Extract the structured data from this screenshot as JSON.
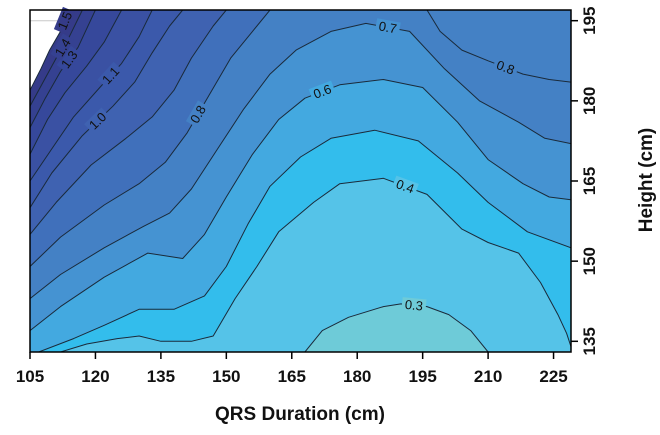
{
  "chart_data": {
    "type": "contour",
    "xlabel": "QRS Duration (cm)",
    "ylabel": "Height (cm)",
    "xlim": [
      105,
      229
    ],
    "ylim": [
      133,
      197
    ],
    "x_ticks": [
      105,
      120,
      135,
      150,
      165,
      180,
      195,
      210,
      225
    ],
    "y_ticks": [
      135,
      150,
      165,
      180,
      195
    ],
    "grid": true,
    "y_axis_side": "right",
    "levels": [
      0.3,
      0.4,
      0.5,
      0.6,
      0.7,
      0.8,
      0.9,
      1.0,
      1.1,
      1.2,
      1.3,
      1.4,
      1.5
    ],
    "level_colors": [
      "#6ecbd8",
      "#55c3e8",
      "#33bdec",
      "#43a9e0",
      "#4593d2",
      "#4481c5",
      "#4070bb",
      "#3f62b1",
      "#3b59ab",
      "#3a51a3",
      "#36489b",
      "#354191",
      "#353b89"
    ],
    "contours": [
      {
        "level": 0.3,
        "label": "0.3",
        "points": [
          [
            168,
            133
          ],
          [
            172,
            137
          ],
          [
            178,
            139.5
          ],
          [
            186,
            141.5
          ],
          [
            190,
            142
          ],
          [
            196,
            141.5
          ],
          [
            201,
            140
          ],
          [
            206,
            137
          ],
          [
            210,
            133
          ]
        ]
      },
      {
        "level": 0.4,
        "label": "0.4",
        "points": [
          [
            112,
            133
          ],
          [
            118,
            134.5
          ],
          [
            125,
            135.5
          ],
          [
            130,
            136
          ],
          [
            135,
            135
          ],
          [
            142,
            135
          ],
          [
            147,
            136
          ],
          [
            152,
            143
          ],
          [
            157,
            149
          ],
          [
            162,
            155.5
          ],
          [
            170,
            161
          ],
          [
            176,
            164.5
          ],
          [
            186,
            165.5
          ],
          [
            196,
            162.5
          ],
          [
            204,
            156
          ],
          [
            210,
            153.5
          ],
          [
            217,
            151.5
          ],
          [
            222,
            146
          ],
          [
            226,
            140
          ],
          [
            228,
            136.5
          ],
          [
            229,
            134
          ]
        ]
      },
      {
        "level": 0.5,
        "label": "",
        "points": [
          [
            107,
            133
          ],
          [
            115,
            135.5
          ],
          [
            122,
            138
          ],
          [
            130,
            141
          ],
          [
            138,
            141
          ],
          [
            145,
            143.5
          ],
          [
            150,
            149
          ],
          [
            155,
            157
          ],
          [
            160,
            164
          ],
          [
            167,
            169.5
          ],
          [
            174,
            173
          ],
          [
            184,
            174.5
          ],
          [
            194,
            172.5
          ],
          [
            203,
            166.5
          ],
          [
            210,
            161
          ],
          [
            219,
            155.5
          ],
          [
            229,
            152.5
          ]
        ]
      },
      {
        "level": 0.6,
        "label": "0.6",
        "points": [
          [
            105,
            137
          ],
          [
            112,
            141.5
          ],
          [
            122,
            147
          ],
          [
            132,
            151.5
          ],
          [
            140,
            150.5
          ],
          [
            145,
            155
          ],
          [
            150,
            162
          ],
          [
            156,
            170
          ],
          [
            162,
            176.5
          ],
          [
            168,
            180.5
          ],
          [
            176,
            183
          ],
          [
            186,
            184
          ],
          [
            195,
            182.5
          ],
          [
            203,
            176
          ],
          [
            210,
            169
          ],
          [
            218,
            164.5
          ],
          [
            224,
            162
          ],
          [
            229,
            161.5
          ]
        ]
      },
      {
        "level": 0.7,
        "label": "0.7",
        "points": [
          [
            105,
            143
          ],
          [
            112,
            147.5
          ],
          [
            122,
            152.5
          ],
          [
            131,
            156.5
          ],
          [
            137,
            159
          ],
          [
            142,
            163.5
          ],
          [
            148,
            171
          ],
          [
            154,
            178.5
          ],
          [
            160,
            185
          ],
          [
            166,
            189.5
          ],
          [
            174,
            193
          ],
          [
            182,
            194.5
          ],
          [
            192,
            193
          ],
          [
            200,
            186
          ],
          [
            208,
            180
          ],
          [
            217,
            176
          ],
          [
            223,
            173
          ],
          [
            229,
            172
          ]
        ]
      },
      {
        "level": 0.8,
        "label": "0.8",
        "points": [
          [
            105,
            149
          ],
          [
            112,
            154.5
          ],
          [
            122,
            160.5
          ],
          [
            130,
            164.5
          ],
          [
            136,
            168.5
          ],
          [
            141,
            174
          ],
          [
            146,
            181
          ],
          [
            151,
            188
          ],
          [
            156,
            193
          ],
          [
            160,
            197
          ]
        ]
      },
      {
        "level": 0.8,
        "label": "0.8",
        "points": [
          [
            196,
            197
          ],
          [
            199,
            193
          ],
          [
            204,
            189.5
          ],
          [
            210,
            187.5
          ],
          [
            218,
            185
          ],
          [
            224,
            184
          ],
          [
            229,
            183.5
          ]
        ]
      },
      {
        "level": 0.9,
        "label": "",
        "points": [
          [
            105,
            155
          ],
          [
            111,
            161
          ],
          [
            119,
            168
          ],
          [
            127,
            173
          ],
          [
            133,
            177
          ],
          [
            138,
            182
          ],
          [
            142,
            188
          ],
          [
            147,
            194
          ],
          [
            150,
            197
          ]
        ]
      },
      {
        "level": 1.0,
        "label": "1.0",
        "points": [
          [
            105,
            160
          ],
          [
            110,
            166.5
          ],
          [
            117,
            173.5
          ],
          [
            124,
            179
          ],
          [
            129,
            183.5
          ],
          [
            133,
            189
          ],
          [
            137,
            194
          ],
          [
            140,
            197
          ]
        ]
      },
      {
        "level": 1.1,
        "label": "1.1",
        "points": [
          [
            105,
            165
          ],
          [
            110,
            171
          ],
          [
            115,
            177
          ],
          [
            121,
            182.5
          ],
          [
            126,
            187
          ],
          [
            130,
            192
          ],
          [
            133,
            197
          ]
        ]
      },
      {
        "level": 1.2,
        "label": "",
        "points": [
          [
            105,
            170
          ],
          [
            109,
            176.5
          ],
          [
            113,
            181.5
          ],
          [
            118,
            186.5
          ],
          [
            122,
            191
          ],
          [
            126,
            197
          ]
        ]
      },
      {
        "level": 1.3,
        "label": "1.3",
        "points": [
          [
            105,
            175
          ],
          [
            108.5,
            180.5
          ],
          [
            112,
            185.5
          ],
          [
            116,
            190
          ],
          [
            120,
            197
          ]
        ]
      },
      {
        "level": 1.4,
        "label": "1.4",
        "points": [
          [
            105,
            179
          ],
          [
            108,
            183.5
          ],
          [
            111,
            188
          ],
          [
            114,
            192
          ],
          [
            117,
            197
          ]
        ]
      },
      {
        "level": 1.5,
        "label": "1.5",
        "points": [
          [
            105,
            182
          ],
          [
            107.5,
            186
          ],
          [
            109.5,
            189.5
          ],
          [
            112,
            193
          ],
          [
            114,
            197
          ]
        ]
      }
    ]
  }
}
